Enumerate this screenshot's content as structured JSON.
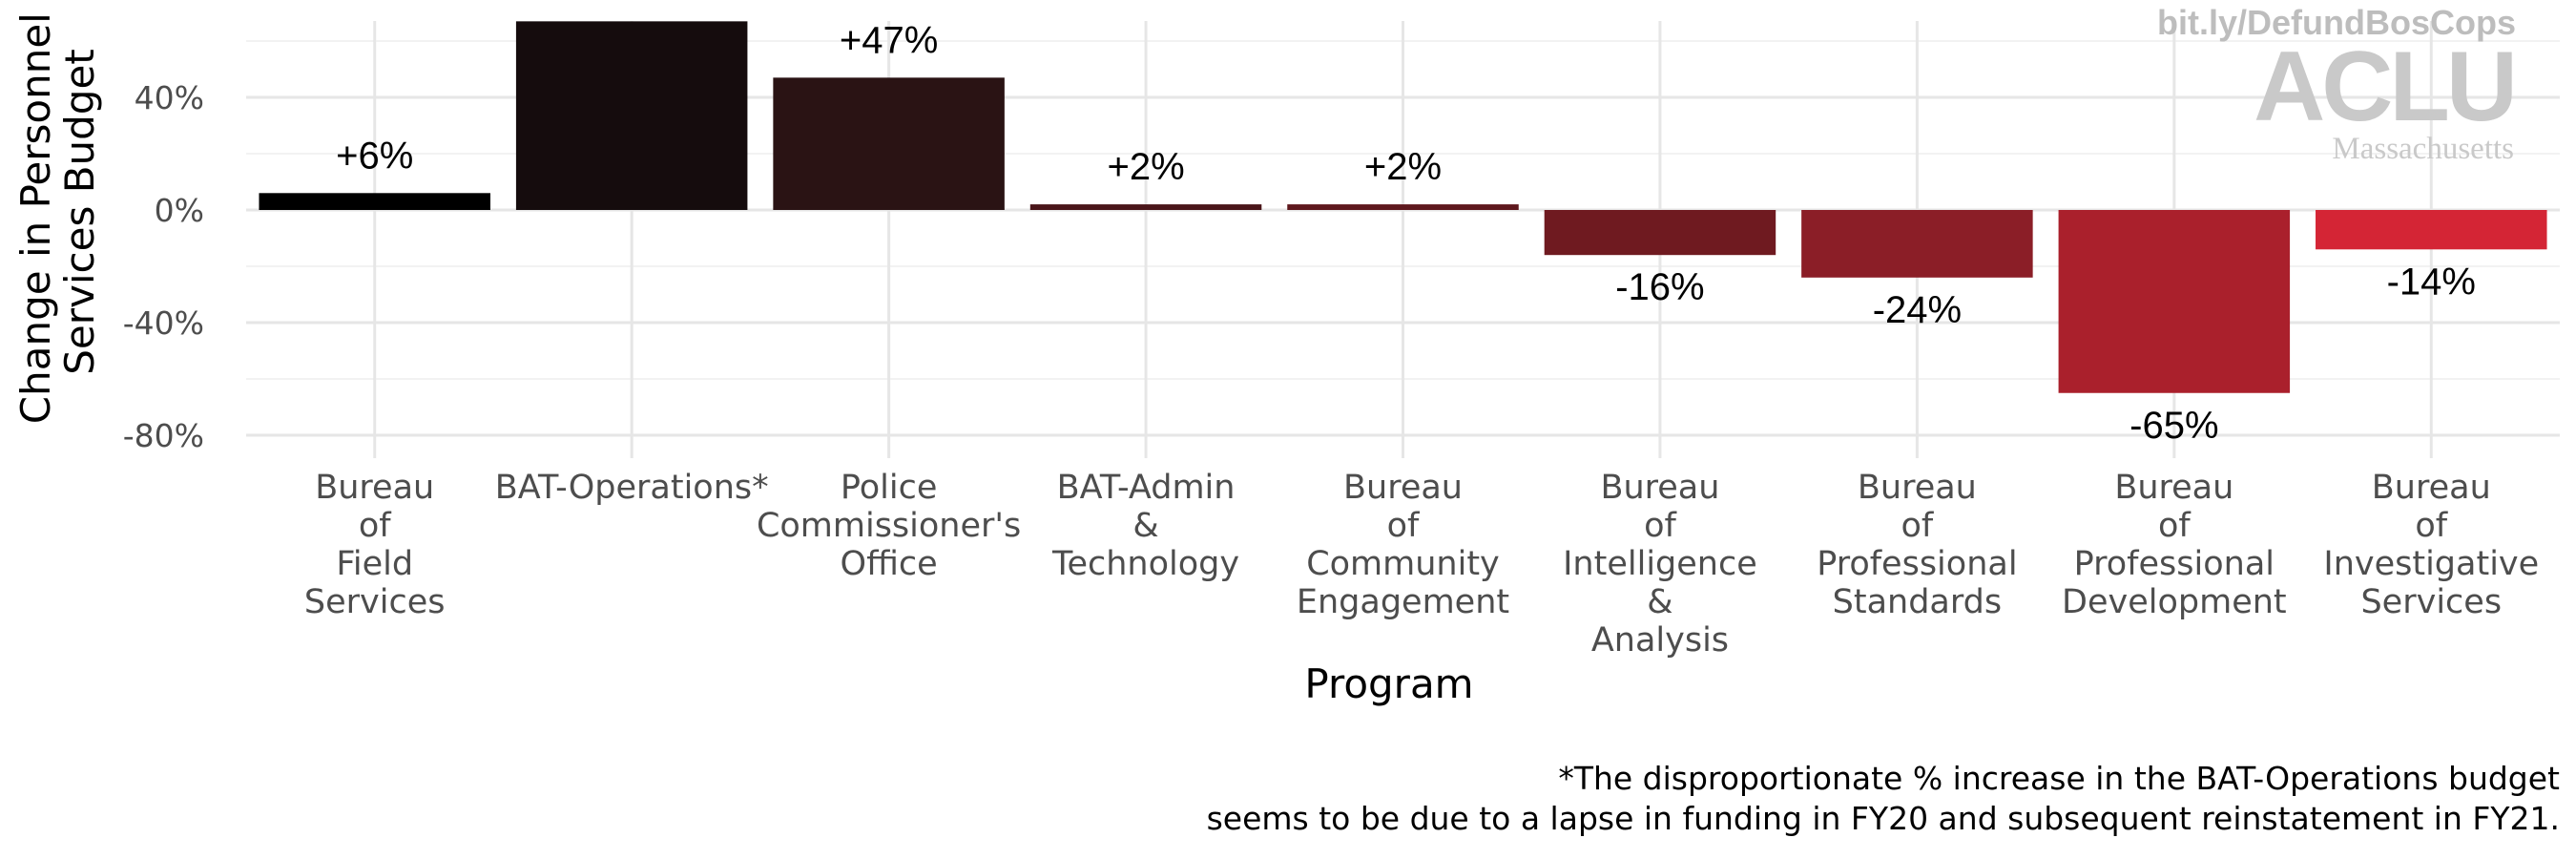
{
  "chart_data": {
    "type": "bar",
    "xlabel": "Program",
    "ylabel": [
      "Change in Personnel",
      "Services Budget"
    ],
    "ylim": [
      -85,
      67
    ],
    "yticks": [
      40,
      0,
      -40,
      -80
    ],
    "ytick_labels": [
      "40%",
      "0%",
      "-40%",
      "-80%"
    ],
    "grid": true,
    "categories": [
      [
        "Bureau",
        "of",
        "Field",
        "Services"
      ],
      [
        "BAT-Operations*"
      ],
      [
        "Police",
        "Commissioner's",
        "Office"
      ],
      [
        "BAT-Admin",
        "&",
        "Technology"
      ],
      [
        "Bureau",
        "of",
        "Community",
        "Engagement"
      ],
      [
        "Bureau",
        "of",
        "Intelligence",
        "&",
        "Analysis"
      ],
      [
        "Bureau",
        "of",
        "Professional",
        "Standards"
      ],
      [
        "Bureau",
        "of",
        "Professional",
        "Development"
      ],
      [
        "Bureau",
        "of",
        "Investigative",
        "Services"
      ]
    ],
    "values": [
      6,
      67,
      47,
      2,
      2,
      -16,
      -24,
      -65,
      -14
    ],
    "data_labels": [
      "+6%",
      "",
      "+47%",
      "+2%",
      "+2%",
      "-16%",
      "-24%",
      "-65%",
      "-14%"
    ],
    "bar_colors": [
      "#000000",
      "#150c0d",
      "#2a1314",
      "#4a1519",
      "#5e181d",
      "#6f1a20",
      "#8b1e27",
      "#aa202c",
      "#d42535"
    ]
  },
  "footnote": [
    "*The disproportionate % increase in the BAT-Operations budget",
    "seems to be due to a lapse in funding in FY20 and subsequent reinstatement in FY21."
  ],
  "watermark": {
    "url": "bit.ly/DefundBosCops",
    "logo": "ACLU",
    "logo_sub": "Massachusetts"
  }
}
